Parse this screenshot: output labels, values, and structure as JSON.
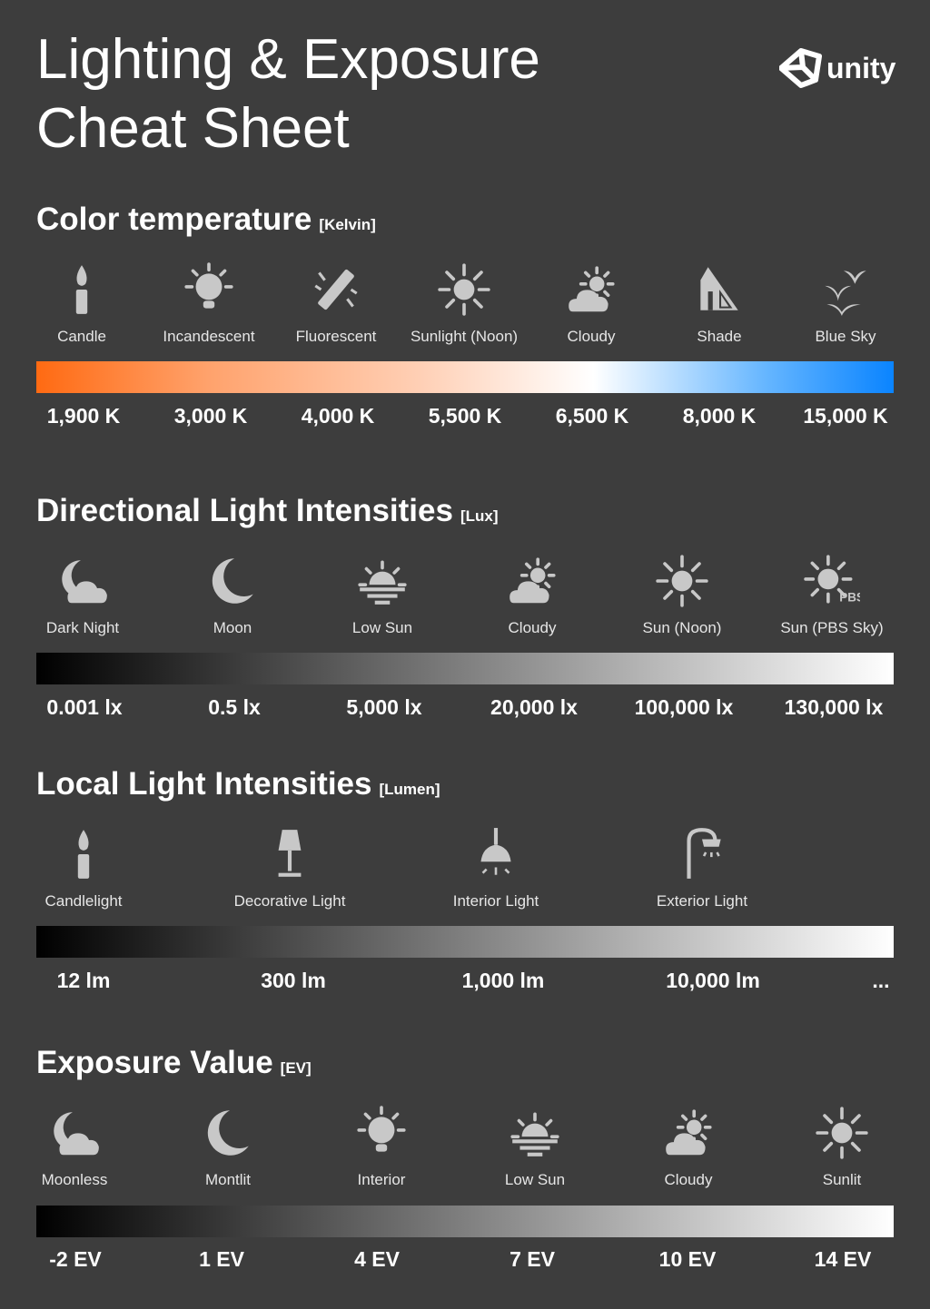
{
  "title_line1": "Lighting & Exposure",
  "title_line2": "Cheat Sheet",
  "logo_text": "unity",
  "icon_color": "#c8c8c8",
  "sections": [
    {
      "title": "Color temperature",
      "unit": "[Kelvin]",
      "gradient": [
        "#ff6a12",
        "#ffa26c",
        "#ffd0b6",
        "#ffffff",
        "#66b6ff",
        "#0a84ff"
      ],
      "items": [
        {
          "label": "Candle",
          "icon": "candle-icon"
        },
        {
          "label": "Incandescent",
          "icon": "bulb-icon"
        },
        {
          "label": "Fluorescent",
          "icon": "fluorescent-tube-icon"
        },
        {
          "label": "Sunlight (Noon)",
          "icon": "sun-icon"
        },
        {
          "label": "Cloudy",
          "icon": "cloudy-icon"
        },
        {
          "label": "Shade",
          "icon": "shade-icon"
        },
        {
          "label": "Blue Sky",
          "icon": "birds-icon"
        }
      ],
      "values": [
        "1,900 K",
        "3,000 K",
        "4,000 K",
        "5,500 K",
        "6,500 K",
        "8,000 K",
        "15,000 K"
      ]
    },
    {
      "title": "Directional Light Intensities",
      "unit": "[Lux]",
      "gradient": [
        "#000000",
        "#ffffff"
      ],
      "items": [
        {
          "label": "Dark Night",
          "icon": "moon-cloud-icon"
        },
        {
          "label": "Moon",
          "icon": "moon-icon"
        },
        {
          "label": "Low Sun",
          "icon": "low-sun-icon"
        },
        {
          "label": "Cloudy",
          "icon": "cloudy-icon"
        },
        {
          "label": "Sun (Noon)",
          "icon": "sun-icon"
        },
        {
          "label": "Sun (PBS Sky)",
          "icon": "sun-pbs-icon",
          "badge": "PBS"
        }
      ],
      "values": [
        "0.001 lx",
        "0.5 lx",
        "5,000 lx",
        "20,000 lx",
        "100,000 lx",
        "130,000 lx"
      ]
    },
    {
      "title": "Local Light Intensities",
      "unit": "[Lumen]",
      "gradient": [
        "#000000",
        "#ffffff"
      ],
      "items": [
        {
          "label": "Candlelight",
          "icon": "candle-icon"
        },
        {
          "label": "Decorative Light",
          "icon": "lamp-icon"
        },
        {
          "label": "Interior Light",
          "icon": "ceiling-light-icon"
        },
        {
          "label": "Exterior Light",
          "icon": "street-light-icon"
        }
      ],
      "values": [
        "12 lm",
        "300 lm",
        "1,000 lm",
        "10,000 lm",
        "..."
      ]
    },
    {
      "title": "Exposure Value",
      "unit": "[EV]",
      "gradient": [
        "#000000",
        "#ffffff"
      ],
      "items": [
        {
          "label": "Moonless",
          "icon": "moon-cloud-icon"
        },
        {
          "label": "Montlit",
          "icon": "moon-icon"
        },
        {
          "label": "Interior",
          "icon": "bulb-icon"
        },
        {
          "label": "Low Sun",
          "icon": "low-sun-icon"
        },
        {
          "label": "Cloudy",
          "icon": "cloudy-icon"
        },
        {
          "label": "Sunlit",
          "icon": "sun-icon"
        }
      ],
      "values": [
        "-2 EV",
        "1 EV",
        "4 EV",
        "7 EV",
        "10 EV",
        "14 EV"
      ]
    }
  ]
}
